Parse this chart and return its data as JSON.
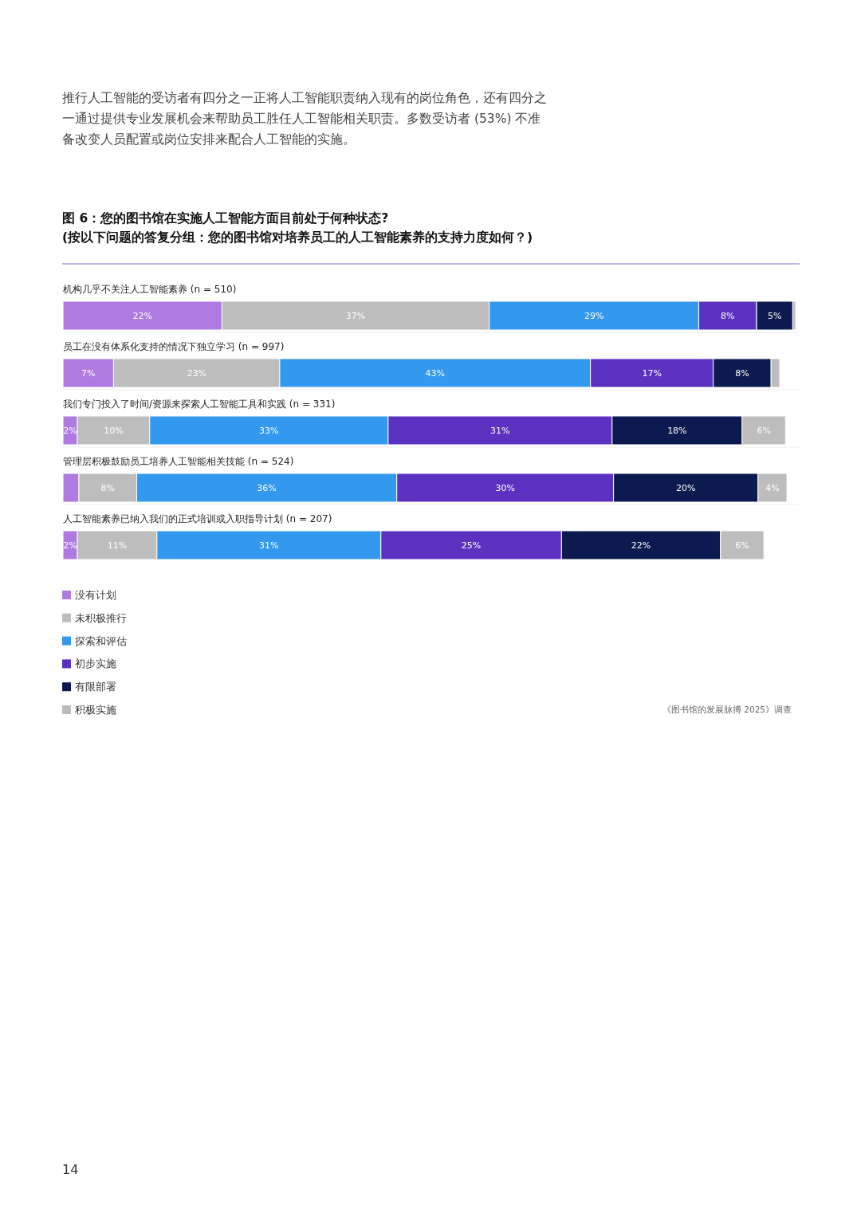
{
  "chart_data": {
    "type": "bar",
    "orientation": "horizontal",
    "stacked": true,
    "title": "图 6：您的图书馆在实施人工智能方面目前处于何种状态?",
    "subtitle": "(按以下问题的答复分组：您的图书馆对培养员工的人工智能素养的支持力度如何？)",
    "categories": [
      "机构几乎不关注人工智能素养 (n = 510)",
      "员工在没有体系化支持的情况下独立学习 (n = 997)",
      "我们专门投入了时间/资源来探索人工智能工具和实践 (n = 331)",
      "管理层积极鼓励员工培养人工智能相关技能 (n = 524)",
      "人工智能素养已纳入我们的正式培训或入职指导计划 (n = 207)"
    ],
    "series": [
      {
        "name": "没有计划",
        "color": "#b07be0",
        "values": [
          22,
          7,
          2,
          2.2,
          2
        ],
        "value_labels": [
          "22%",
          "7%",
          "2%",
          null,
          "2%"
        ]
      },
      {
        "name": "未积极推行",
        "color": "#bdbdbd",
        "values": [
          37,
          23,
          10,
          8,
          11
        ],
        "value_labels": [
          "37%",
          "23%",
          "10%",
          "8%",
          "11%"
        ]
      },
      {
        "name": "探索和评估",
        "color": "#3399ee",
        "values": [
          29,
          43,
          33,
          36,
          31
        ],
        "value_labels": [
          "29%",
          "43%",
          "33%",
          "36%",
          "31%"
        ]
      },
      {
        "name": "初步实施",
        "color": "#5b32c0",
        "values": [
          8,
          17,
          31,
          30,
          25
        ],
        "value_labels": [
          "8%",
          "17%",
          "31%",
          "30%",
          "25%"
        ]
      },
      {
        "name": "有限部署",
        "color": "#0d1a4f",
        "values": [
          5,
          8,
          18,
          20,
          22
        ],
        "value_labels": [
          "5%",
          "8%",
          "18%",
          "20%",
          "22%"
        ]
      },
      {
        "name": "积极实施",
        "color": "#bdbdbd",
        "values": [
          0.4,
          1.2,
          6,
          4,
          6
        ],
        "value_labels": [
          null,
          null,
          "6%",
          "4%",
          "6%"
        ]
      }
    ],
    "legend": "bottom",
    "annotations": [
      "推行人工智能的受访者有四分之一正将人工智能职责纳入现有的岗位角色，还有四分之一通过提供专业发展机会来帮助员工胜任人工智能相关职责。多数受访者 (53%) 不准备改变人员配置或岗位安排来配合人工智能的实施。",
      "《图书馆的发展脉搏 2025》调查",
      "14"
    ]
  }
}
